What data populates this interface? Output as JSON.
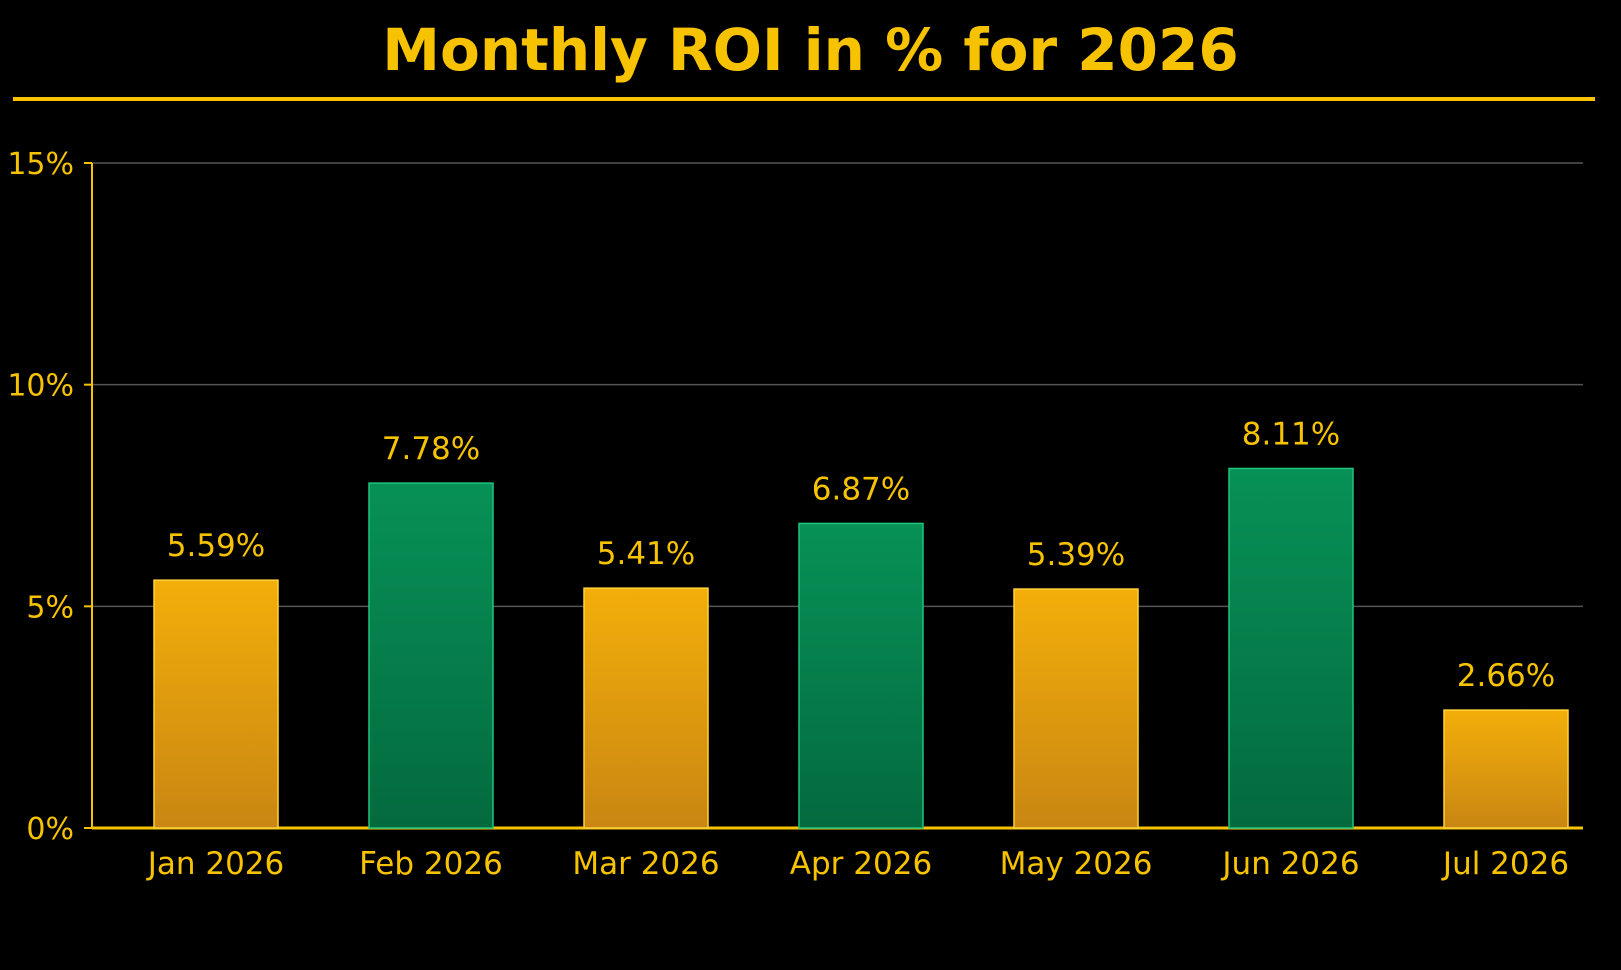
{
  "chart_data": {
    "type": "bar",
    "title": "Monthly ROI in % for 2026",
    "xlabel": "",
    "ylabel": "",
    "categories": [
      "Jan 2026",
      "Feb 2026",
      "Mar 2026",
      "Apr 2026",
      "May 2026",
      "Jun 2026",
      "Jul 2026"
    ],
    "values": [
      5.59,
      7.78,
      5.41,
      6.87,
      5.39,
      8.11,
      2.66
    ],
    "value_labels": [
      "5.59%",
      "7.78%",
      "5.41%",
      "6.87%",
      "5.39%",
      "8.11%",
      "2.66%"
    ],
    "ylim": [
      0,
      15
    ],
    "y_ticks": [
      0,
      5,
      10,
      15
    ],
    "y_tick_labels": [
      "0%",
      "5%",
      "10%",
      "15%"
    ],
    "grid": true,
    "legend": "none",
    "colors": {
      "background": "#000000",
      "text": "#F7C300",
      "axis": "#F7C300",
      "grid": "#555555",
      "bar_gold": "#F2A90E",
      "bar_green": "#068C55"
    },
    "bar_color_sequence": [
      "gold",
      "green",
      "gold",
      "green",
      "gold",
      "green",
      "gold"
    ]
  }
}
